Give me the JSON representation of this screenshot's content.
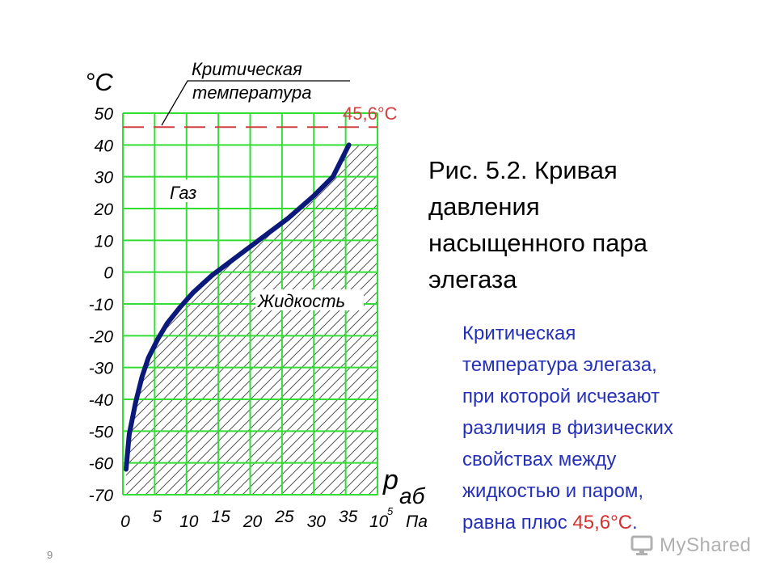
{
  "chart_data": {
    "type": "line",
    "title": "",
    "ylabel": "°С",
    "xlabel_main": "р",
    "xlabel_sub": "аб",
    "xunit_base": "10",
    "xunit_exp": "5",
    "xunit_name": "Па",
    "xlim": [
      0,
      40
    ],
    "ylim": [
      -70,
      50
    ],
    "x_ticks": [
      "0",
      "5",
      "10",
      "15",
      "20",
      "25",
      "30",
      "35"
    ],
    "y_ticks": [
      "50",
      "40",
      "30",
      "20",
      "10",
      "0",
      "-10",
      "-20",
      "-30",
      "-40",
      "-50",
      "-60",
      "-70"
    ],
    "series": [
      {
        "x": [
          0.5,
          1,
          2,
          3,
          4,
          5.5,
          7,
          9,
          11,
          14,
          18,
          22,
          26,
          30,
          33,
          35.5
        ],
        "y": [
          -62,
          -51,
          -41,
          -33,
          -27,
          -21,
          -16,
          -11,
          -6.5,
          -1,
          5,
          11,
          17,
          24,
          30,
          40
        ],
        "color": "#0b1a7a"
      }
    ],
    "critical_temperature": {
      "value": 45.6,
      "label": "45,6°С",
      "annotation_line1": "Критическая",
      "annotation_line2": "температура",
      "color": "#d14040"
    },
    "region_labels": {
      "gas": "Газ",
      "liquid": "Жидкость"
    },
    "grid": true,
    "grid_color": "#33dd33"
  },
  "caption": {
    "lines": [
      "Рис. 5.2. Кривая",
      "давления",
      "насыщенного пара",
      "элегаза"
    ]
  },
  "description": {
    "lines": [
      "Критическая",
      "температура элегаза,",
      "при которой исчезают",
      "различия в физических",
      "свойствах между",
      "жидкостью и паром,"
    ],
    "last_prefix": "равна плюс ",
    "last_value": "45,6°С",
    "last_suffix": ".",
    "text_color": "#2530b8",
    "value_color": "#d43030"
  },
  "footer": {
    "page_number": "9",
    "logo_text": "MyShared"
  }
}
